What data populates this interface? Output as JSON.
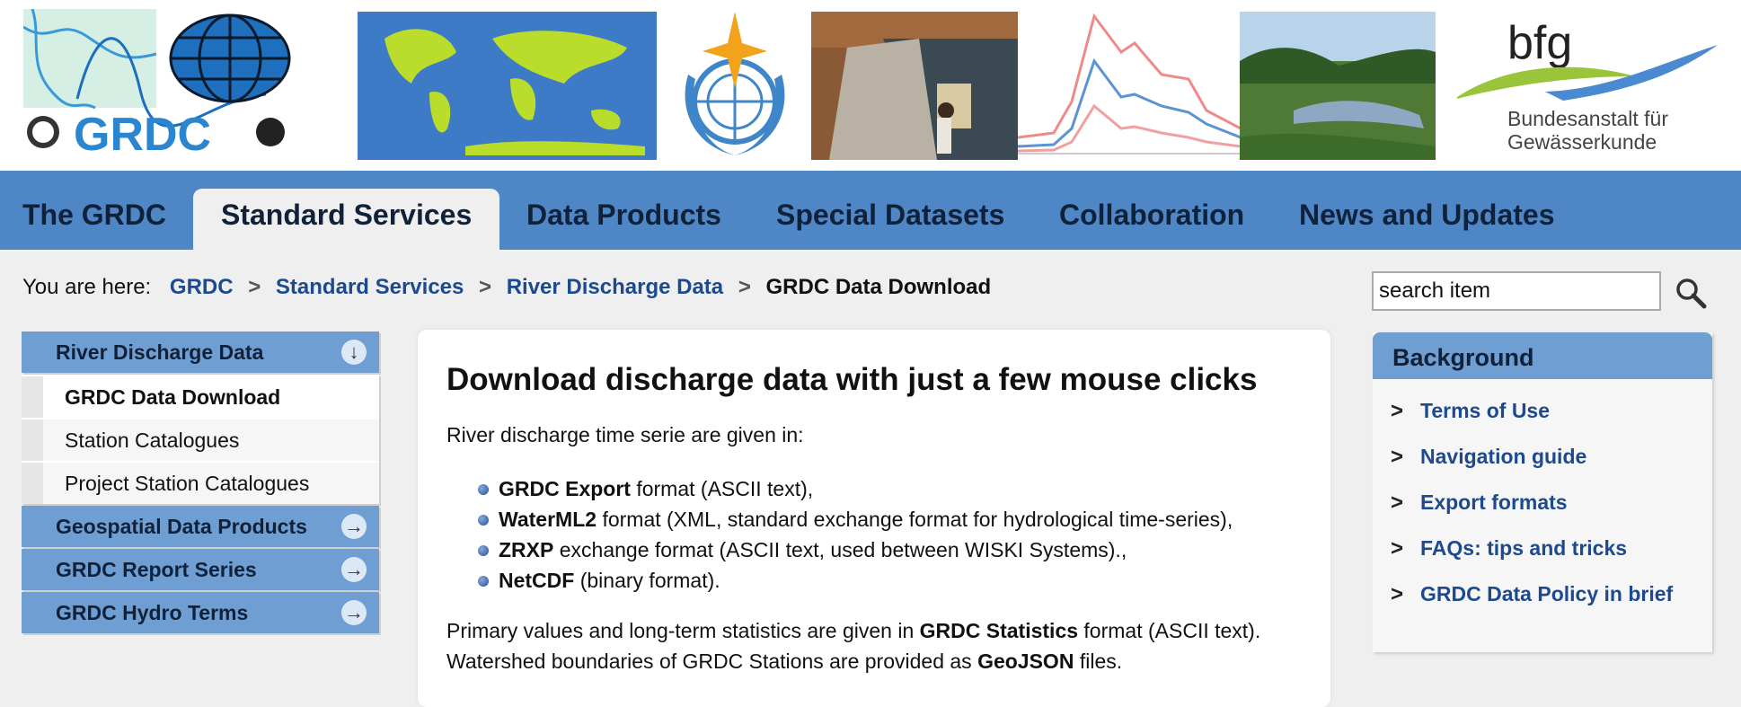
{
  "header": {
    "logo_text": "GRDC",
    "partner_logo": {
      "abbr": "bfg",
      "line1": "Bundesanstalt für",
      "line2": "Gewässerkunde"
    }
  },
  "nav": {
    "items": [
      {
        "label": "The GRDC"
      },
      {
        "label": "Standard Services",
        "active": true
      },
      {
        "label": "Data Products"
      },
      {
        "label": "Special Datasets"
      },
      {
        "label": "Collaboration"
      },
      {
        "label": "News and Updates"
      }
    ]
  },
  "breadcrumb": {
    "prefix": "You are here:",
    "links": [
      "GRDC",
      "Standard Services",
      "River Discharge Data"
    ],
    "current": "GRDC Data Download",
    "separator": ">"
  },
  "search": {
    "value": "search item",
    "icon": "magnifier-icon"
  },
  "sidebar": {
    "sections": [
      {
        "label": "River Discharge Data",
        "expanded": true,
        "arrow": "↓",
        "children": [
          {
            "label": "GRDC Data Download",
            "active": true
          },
          {
            "label": "Station Catalogues"
          },
          {
            "label": "Project Station Catalogues"
          }
        ]
      },
      {
        "label": "Geospatial Data Products",
        "arrow": "→"
      },
      {
        "label": "GRDC Report Series",
        "arrow": "→"
      },
      {
        "label": "GRDC Hydro Terms",
        "arrow": "→"
      }
    ]
  },
  "main": {
    "title": "Download discharge data with just a few mouse clicks",
    "intro": "River discharge time serie are given in:",
    "formats": [
      {
        "name": "GRDC Export",
        "desc": " format (ASCII text),"
      },
      {
        "name": "WaterML2",
        "desc": " format (XML, standard exchange format for hydrological time-series),"
      },
      {
        "name": "ZRXP",
        "desc": " exchange format (ASCII text, used between WISKI Systems)., "
      },
      {
        "name": "NetCDF",
        "desc": " (binary format)."
      }
    ],
    "para1_pre": "Primary values and long-term statistics are given in ",
    "para1_bold": "GRDC Statistics",
    "para1_post": " format (ASCII text).",
    "para2_pre": "Watershed boundaries of GRDC Stations are provided as ",
    "para2_bold": "GeoJSON",
    "para2_post": " files."
  },
  "background_box": {
    "title": "Background",
    "links": [
      "Terms of Use",
      "Navigation guide",
      "Export formats",
      "FAQs: tips and tricks",
      "GRDC Data Policy in brief"
    ]
  },
  "colors": {
    "nav_bg": "#4f86c6",
    "sidebar_head": "#6f9ed3",
    "link": "#1d4a8e",
    "page_bg": "#efefef"
  }
}
